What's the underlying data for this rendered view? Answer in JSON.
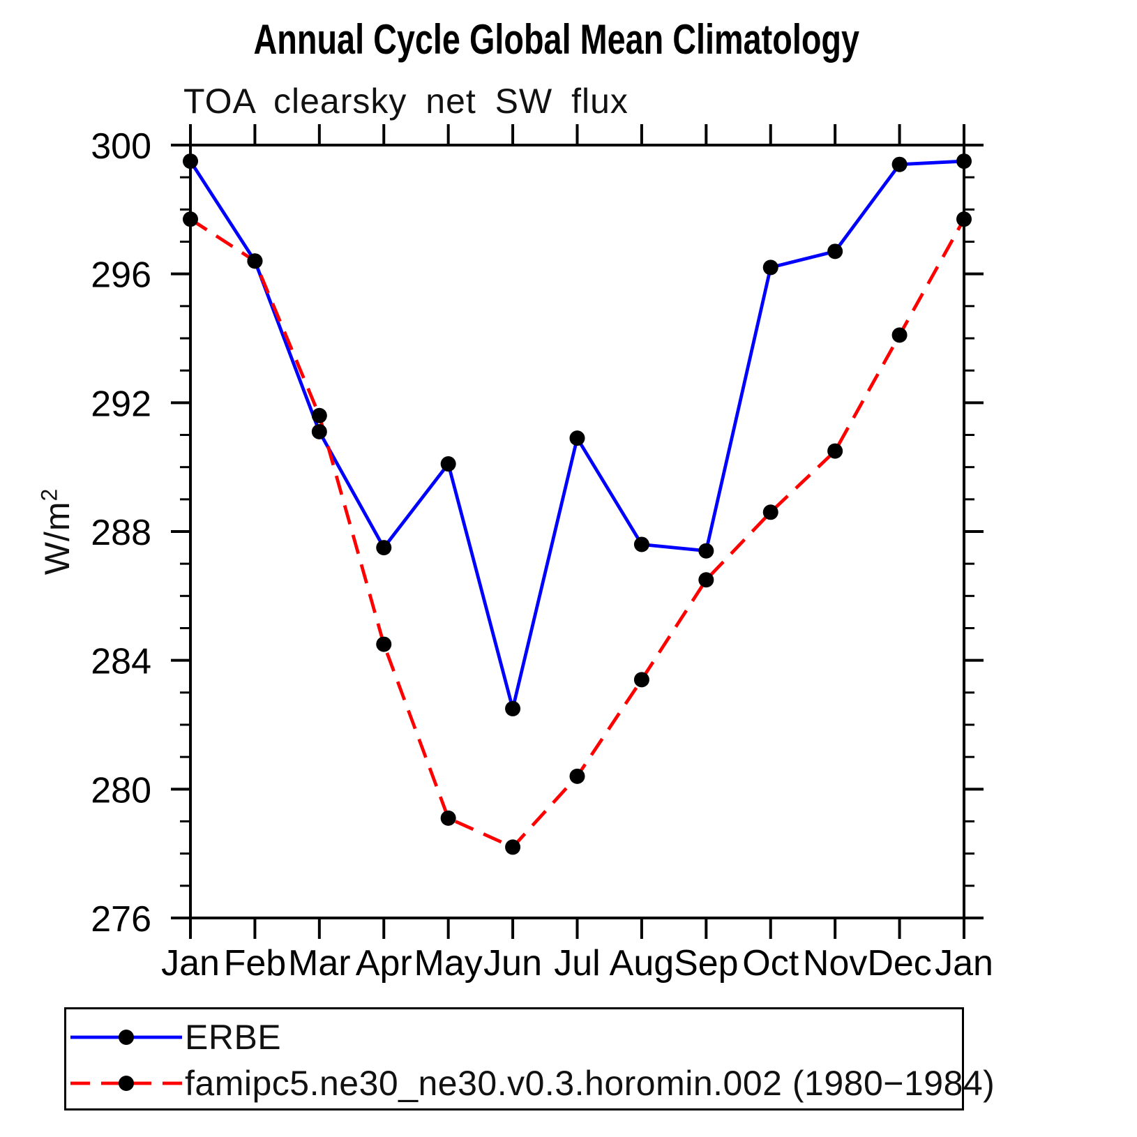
{
  "header": {
    "title": "Annual Cycle Global Mean Climatology",
    "subtitle": "TOA clearsky net SW flux"
  },
  "y_axis_label": {
    "base": "W/m",
    "exponent": "2",
    "full": "W/m²"
  },
  "colors": {
    "erbe_line": "#0000ff",
    "model_line": "#ff0000",
    "marker": "#000000",
    "axis": "#000000",
    "background": "#ffffff"
  },
  "chart_data": {
    "type": "line",
    "title": "Annual Cycle Global Mean Climatology",
    "subtitle": "TOA clearsky net SW flux",
    "xlabel": "",
    "ylabel": "W/m²",
    "categories": [
      "Jan",
      "Feb",
      "Mar",
      "Apr",
      "May",
      "Jun",
      "Jul",
      "Aug",
      "Sep",
      "Oct",
      "Nov",
      "Dec",
      "Jan"
    ],
    "ylim": [
      276,
      300
    ],
    "yticks": [
      276,
      280,
      284,
      288,
      292,
      296,
      300
    ],
    "y_minor_tick_step": 1,
    "grid": false,
    "marker": "filled-circle",
    "legend_position": "bottom-left-box",
    "series": [
      {
        "name": "ERBE",
        "color": "#0000ff",
        "line_style": "solid",
        "marker_color": "#000000",
        "values": [
          299.5,
          296.4,
          291.1,
          287.5,
          290.1,
          282.5,
          290.9,
          287.6,
          287.4,
          296.2,
          296.7,
          299.4,
          299.5
        ]
      },
      {
        "name": "famipc5.ne30_ne30.v0.3.horomin.002 (1980−1984)",
        "color": "#ff0000",
        "line_style": "dashed",
        "marker_color": "#000000",
        "values": [
          297.7,
          296.4,
          291.6,
          284.5,
          279.1,
          278.2,
          280.4,
          283.4,
          286.5,
          288.6,
          290.5,
          294.1,
          297.7
        ]
      }
    ]
  }
}
